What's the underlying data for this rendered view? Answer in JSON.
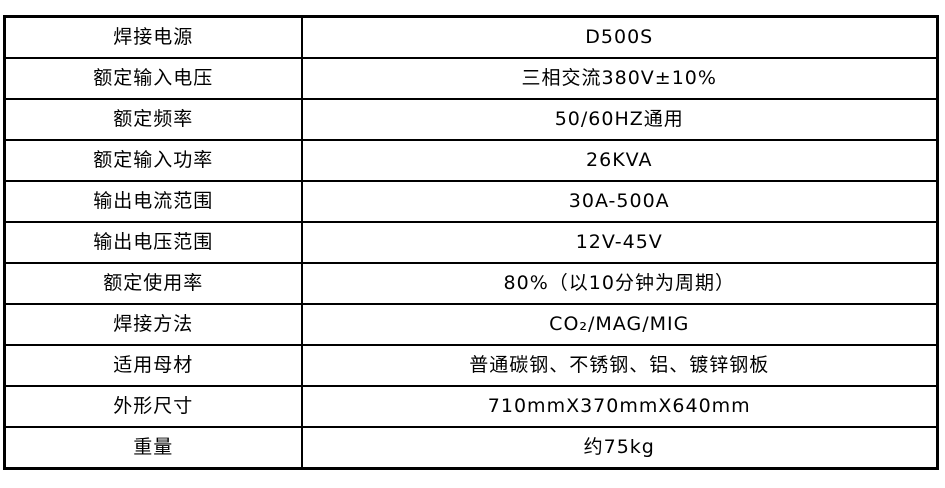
{
  "colors": {
    "background": "#ffffff",
    "border": "#000000",
    "text": "#000000"
  },
  "table": {
    "description": "welding-power-source-specifications",
    "columns": [
      "parameter",
      "value"
    ],
    "rows": [
      {
        "label": "焊接电源",
        "value": "D500S"
      },
      {
        "label": "额定输入电压",
        "value": "三相交流380V±10%"
      },
      {
        "label": "额定频率",
        "value": "50/60HZ通用"
      },
      {
        "label": "额定输入功率",
        "value": "26KVA"
      },
      {
        "label": "输出电流范围",
        "value": "30A-500A"
      },
      {
        "label": "输出电压范围",
        "value": "12V-45V"
      },
      {
        "label": "额定使用率",
        "value": "80%（以10分钟为周期）"
      },
      {
        "label": "焊接方法",
        "value": "CO₂/MAG/MIG"
      },
      {
        "label": "适用母材",
        "value": "普通碳钢、不锈钢、铝、镀锌钢板"
      },
      {
        "label": "外形尺寸",
        "value": "710mmX370mmX640mm"
      },
      {
        "label": "重量",
        "value": "约75kg"
      }
    ]
  }
}
